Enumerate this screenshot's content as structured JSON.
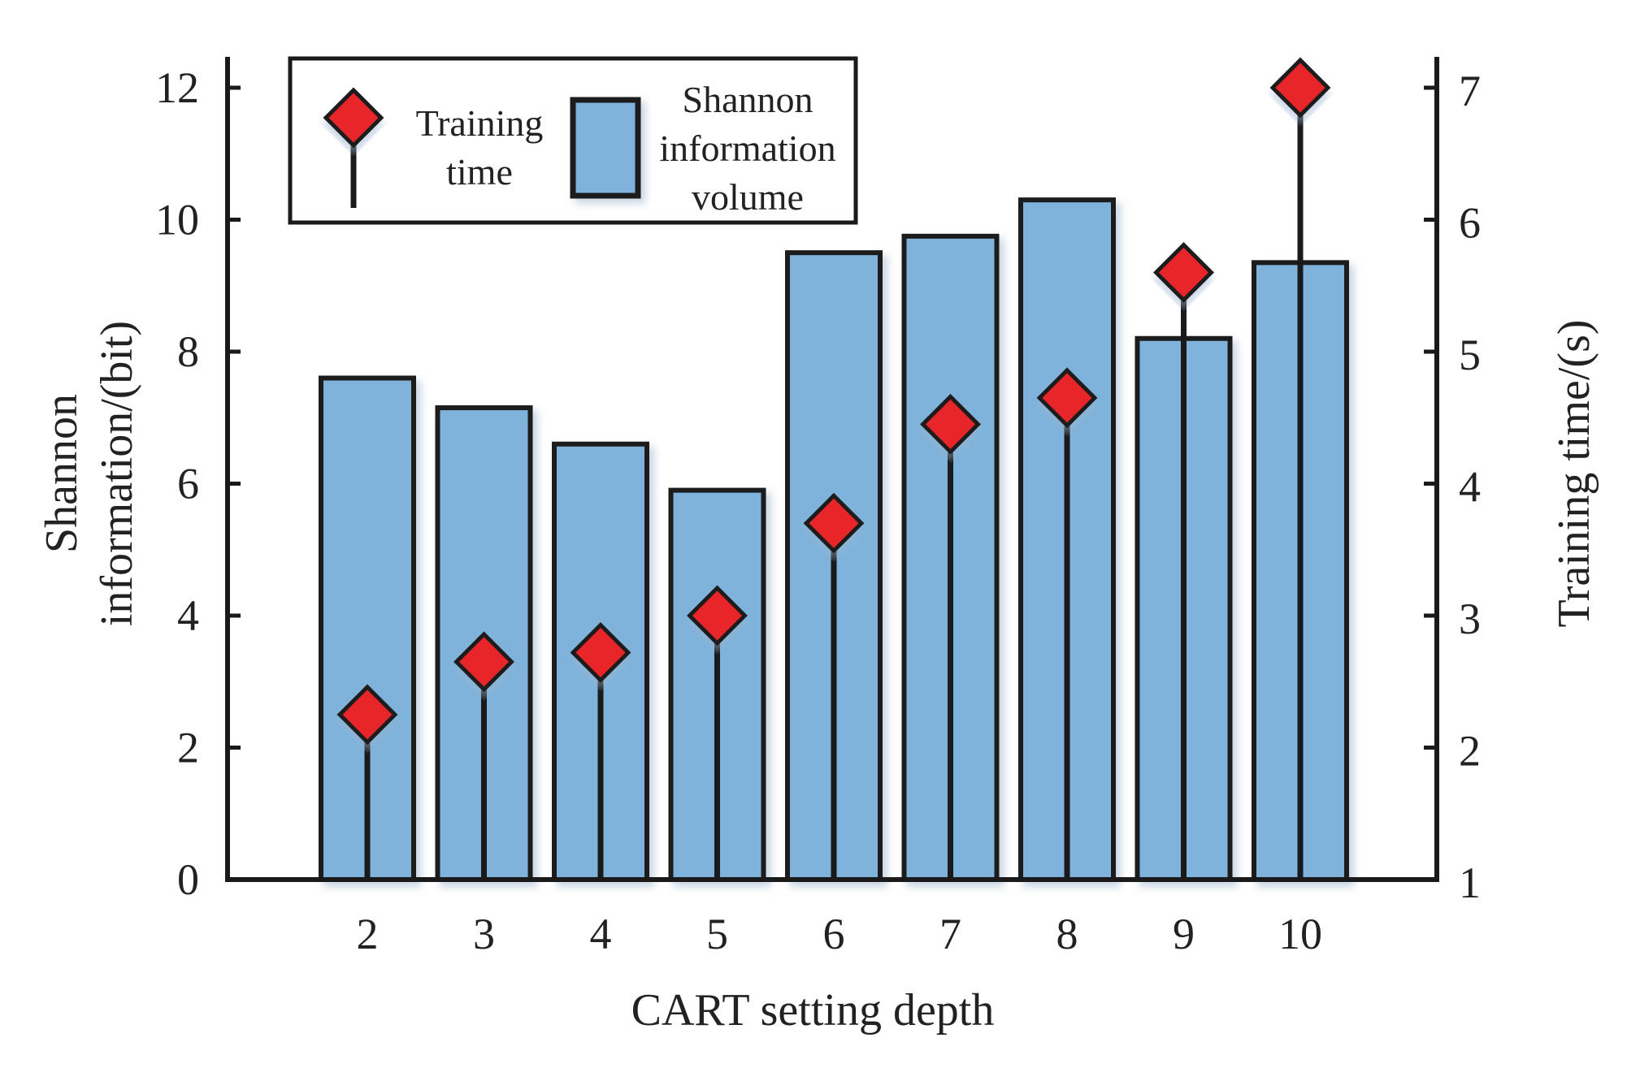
{
  "chart_data": {
    "type": "bar",
    "title": "",
    "xlabel": "CART setting depth",
    "ylabel_left_line1": "Shannon",
    "ylabel_left_line2": "information/(bit)",
    "ylabel_right": "Training time/(s)",
    "categories": [
      "2",
      "3",
      "4",
      "5",
      "6",
      "7",
      "8",
      "9",
      "10"
    ],
    "ylim_left": [
      0,
      12
    ],
    "ylim_right": [
      1,
      7
    ],
    "yticks_left": [
      "0",
      "2",
      "4",
      "6",
      "8",
      "10",
      "12"
    ],
    "yticks_right": [
      "1",
      "2",
      "3",
      "4",
      "5",
      "6",
      "7"
    ],
    "series": [
      {
        "name": "Shannon information volume",
        "axis": "left",
        "kind": "bar",
        "values": [
          7.6,
          7.15,
          6.6,
          5.9,
          9.5,
          9.75,
          10.3,
          8.2,
          9.35
        ]
      },
      {
        "name": "Training time",
        "axis": "right",
        "kind": "stem",
        "values": [
          2.25,
          2.65,
          2.72,
          3.0,
          3.7,
          4.45,
          4.65,
          5.6,
          7.0
        ]
      }
    ],
    "legend": {
      "placement": "top-left",
      "stem_label_lines": [
        "Training",
        "time"
      ],
      "bar_label_lines": [
        "Shannon",
        "information",
        "volume"
      ]
    }
  },
  "colors": {
    "bar_fill": "#7fb3dc",
    "marker_fill": "#e8252b",
    "outline": "#1a1a1a",
    "text": "#222222"
  }
}
